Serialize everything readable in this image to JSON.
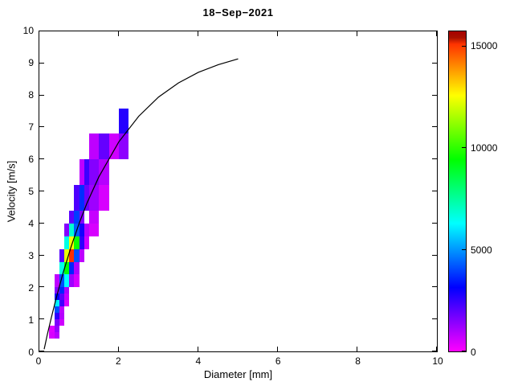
{
  "title": "18−Sep−2021",
  "chart_data": {
    "type": "heatmap",
    "title": "18−Sep−2021",
    "xlabel": "Diameter [mm]",
    "ylabel": "Velocity [m/s]",
    "xlim": [
      0,
      10
    ],
    "ylim": [
      0,
      10
    ],
    "x_ticks": [
      0,
      2,
      4,
      6,
      8,
      10
    ],
    "y_ticks": [
      0,
      1,
      2,
      3,
      4,
      5,
      6,
      7,
      8,
      9,
      10
    ],
    "grid": false,
    "legend": "none",
    "colorbar": {
      "min": 0,
      "max": 15750,
      "ticks": [
        0,
        5000,
        10000,
        15000
      ],
      "colormap": "hsv-flipped",
      "colors_low_to_high": [
        "#ff00ff",
        "#0000ff",
        "#00ffff",
        "#00ff00",
        "#ffff00",
        "#ff0000",
        "#7f0000"
      ]
    },
    "cells_format": [
      "d_min_mm",
      "d_max_mm",
      "v_min_ms",
      "v_max_ms",
      "count"
    ],
    "cells": [
      [
        0.25,
        0.375,
        0.4,
        0.6,
        500
      ],
      [
        0.375,
        0.5,
        0.4,
        0.6,
        900
      ],
      [
        0.25,
        0.375,
        0.6,
        0.8,
        400
      ],
      [
        0.375,
        0.5,
        0.6,
        0.8,
        1300
      ],
      [
        0.375,
        0.5,
        0.8,
        1.0,
        1600
      ],
      [
        0.5,
        0.625,
        0.8,
        1.0,
        600
      ],
      [
        0.375,
        0.5,
        1.0,
        1.2,
        2600
      ],
      [
        0.5,
        0.625,
        1.0,
        1.2,
        900
      ],
      [
        0.375,
        0.5,
        1.2,
        1.4,
        4100
      ],
      [
        0.5,
        0.625,
        1.2,
        1.4,
        800
      ],
      [
        0.375,
        0.5,
        1.4,
        1.6,
        6100
      ],
      [
        0.5,
        0.625,
        1.4,
        1.6,
        2400
      ],
      [
        0.625,
        0.75,
        1.4,
        1.6,
        500
      ],
      [
        0.375,
        0.5,
        1.6,
        1.8,
        3100
      ],
      [
        0.5,
        0.625,
        1.6,
        1.8,
        2000
      ],
      [
        0.625,
        0.75,
        1.6,
        1.8,
        700
      ],
      [
        0.375,
        0.5,
        1.8,
        2.0,
        1500
      ],
      [
        0.5,
        0.625,
        1.8,
        2.0,
        3600
      ],
      [
        0.625,
        0.75,
        1.8,
        2.0,
        1000
      ],
      [
        0.375,
        0.5,
        2.0,
        2.4,
        800
      ],
      [
        0.5,
        0.625,
        2.0,
        2.4,
        4100
      ],
      [
        0.625,
        0.75,
        2.0,
        2.4,
        6300
      ],
      [
        0.75,
        0.875,
        2.0,
        2.4,
        1200
      ],
      [
        0.875,
        1.0,
        2.0,
        2.4,
        500
      ],
      [
        0.5,
        0.625,
        2.4,
        2.8,
        6600
      ],
      [
        0.625,
        0.75,
        2.4,
        2.8,
        9400
      ],
      [
        0.75,
        0.875,
        2.4,
        2.8,
        3600
      ],
      [
        0.875,
        1.0,
        2.4,
        2.8,
        1000
      ],
      [
        0.5,
        0.625,
        2.8,
        3.2,
        2100
      ],
      [
        0.625,
        0.75,
        2.8,
        3.2,
        12300
      ],
      [
        0.75,
        0.875,
        2.8,
        3.2,
        15200
      ],
      [
        0.875,
        1.0,
        2.8,
        3.2,
        4100
      ],
      [
        1.0,
        1.125,
        2.8,
        3.2,
        800
      ],
      [
        0.625,
        0.75,
        3.2,
        3.6,
        6600
      ],
      [
        0.75,
        0.875,
        3.2,
        3.6,
        12600
      ],
      [
        0.875,
        1.0,
        3.2,
        3.6,
        9600
      ],
      [
        1.0,
        1.125,
        3.2,
        3.6,
        2600
      ],
      [
        1.125,
        1.25,
        3.2,
        3.6,
        600
      ],
      [
        0.625,
        0.75,
        3.6,
        4.0,
        1500
      ],
      [
        0.75,
        0.875,
        3.6,
        4.0,
        6900
      ],
      [
        0.875,
        1.0,
        3.6,
        4.0,
        4300
      ],
      [
        1.0,
        1.125,
        3.6,
        4.0,
        2900
      ],
      [
        1.125,
        1.25,
        3.6,
        4.0,
        900
      ],
      [
        1.25,
        1.5,
        3.6,
        4.0,
        500
      ],
      [
        0.75,
        0.875,
        4.0,
        4.4,
        2000
      ],
      [
        0.875,
        1.0,
        4.0,
        4.4,
        3900
      ],
      [
        1.0,
        1.125,
        4.0,
        4.4,
        1500
      ],
      [
        1.25,
        1.5,
        4.0,
        4.4,
        700
      ],
      [
        0.875,
        1.0,
        4.4,
        5.2,
        2200
      ],
      [
        1.0,
        1.125,
        4.4,
        5.2,
        3700
      ],
      [
        1.125,
        1.25,
        4.4,
        5.2,
        1800
      ],
      [
        1.25,
        1.5,
        4.4,
        5.2,
        1200
      ],
      [
        1.5,
        1.75,
        4.4,
        5.2,
        500
      ],
      [
        1.0,
        1.125,
        5.2,
        6.0,
        800
      ],
      [
        1.125,
        1.25,
        5.2,
        6.0,
        2400
      ],
      [
        1.25,
        1.5,
        5.2,
        6.0,
        1500
      ],
      [
        1.5,
        1.75,
        5.2,
        6.0,
        900
      ],
      [
        1.25,
        1.5,
        6.0,
        6.8,
        800
      ],
      [
        1.5,
        1.75,
        6.0,
        6.8,
        1900
      ],
      [
        1.75,
        2.0,
        6.0,
        6.8,
        600
      ],
      [
        2.0,
        2.25,
        6.0,
        6.8,
        1400
      ],
      [
        2.0,
        2.25,
        6.8,
        7.6,
        2700
      ]
    ],
    "curve": {
      "name": "terminal-velocity-curve",
      "x": [
        0.12,
        0.15,
        0.2,
        0.3,
        0.4,
        0.5,
        0.6,
        0.8,
        1.0,
        1.2,
        1.5,
        2.0,
        2.5,
        3.0,
        3.5,
        4.0,
        4.5,
        5.0
      ],
      "y": [
        0.07,
        0.24,
        0.52,
        1.05,
        1.55,
        2.02,
        2.46,
        3.28,
        4.0,
        4.64,
        5.46,
        6.55,
        7.35,
        7.95,
        8.39,
        8.72,
        8.96,
        9.14
      ]
    }
  }
}
